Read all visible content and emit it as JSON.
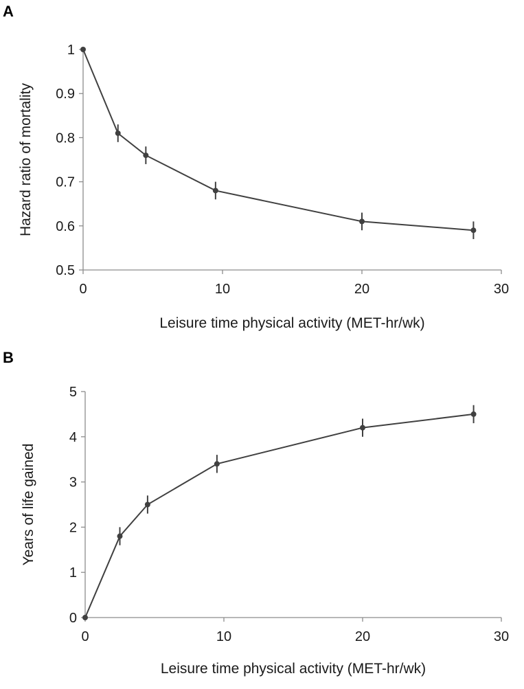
{
  "chart_data": [
    {
      "panel": "A",
      "type": "line",
      "title": "",
      "xlabel": "Leisure time physical activity (MET-hr/wk)",
      "ylabel": "Hazard ratio of mortality",
      "xlim": [
        0,
        30
      ],
      "ylim": [
        0.5,
        1
      ],
      "xticks": [
        "0",
        "10",
        "20",
        "30"
      ],
      "yticks": [
        "0.5",
        "0.6",
        "0.7",
        "0.8",
        "0.9",
        "1"
      ],
      "grid": false,
      "series": [
        {
          "x": [
            0,
            2.5,
            4.5,
            9.5,
            20,
            28
          ],
          "y": [
            1.0,
            0.81,
            0.76,
            0.68,
            0.61,
            0.59
          ],
          "err": [
            0,
            0.02,
            0.02,
            0.02,
            0.02,
            0.02
          ],
          "color": "#404040"
        }
      ]
    },
    {
      "panel": "B",
      "type": "line",
      "title": "",
      "xlabel": "Leisure time physical activity (MET-hr/wk)",
      "ylabel": "Years of life gained",
      "xlim": [
        0,
        30
      ],
      "ylim": [
        0,
        5
      ],
      "xticks": [
        "0",
        "10",
        "20",
        "30"
      ],
      "yticks": [
        "0",
        "1",
        "2",
        "3",
        "4",
        "5"
      ],
      "grid": false,
      "series": [
        {
          "x": [
            0,
            2.5,
            4.5,
            9.5,
            20,
            28
          ],
          "y": [
            0,
            1.8,
            2.5,
            3.4,
            4.2,
            4.5
          ],
          "err": [
            0,
            0.2,
            0.2,
            0.2,
            0.2,
            0.2
          ],
          "color": "#404040"
        }
      ]
    }
  ]
}
